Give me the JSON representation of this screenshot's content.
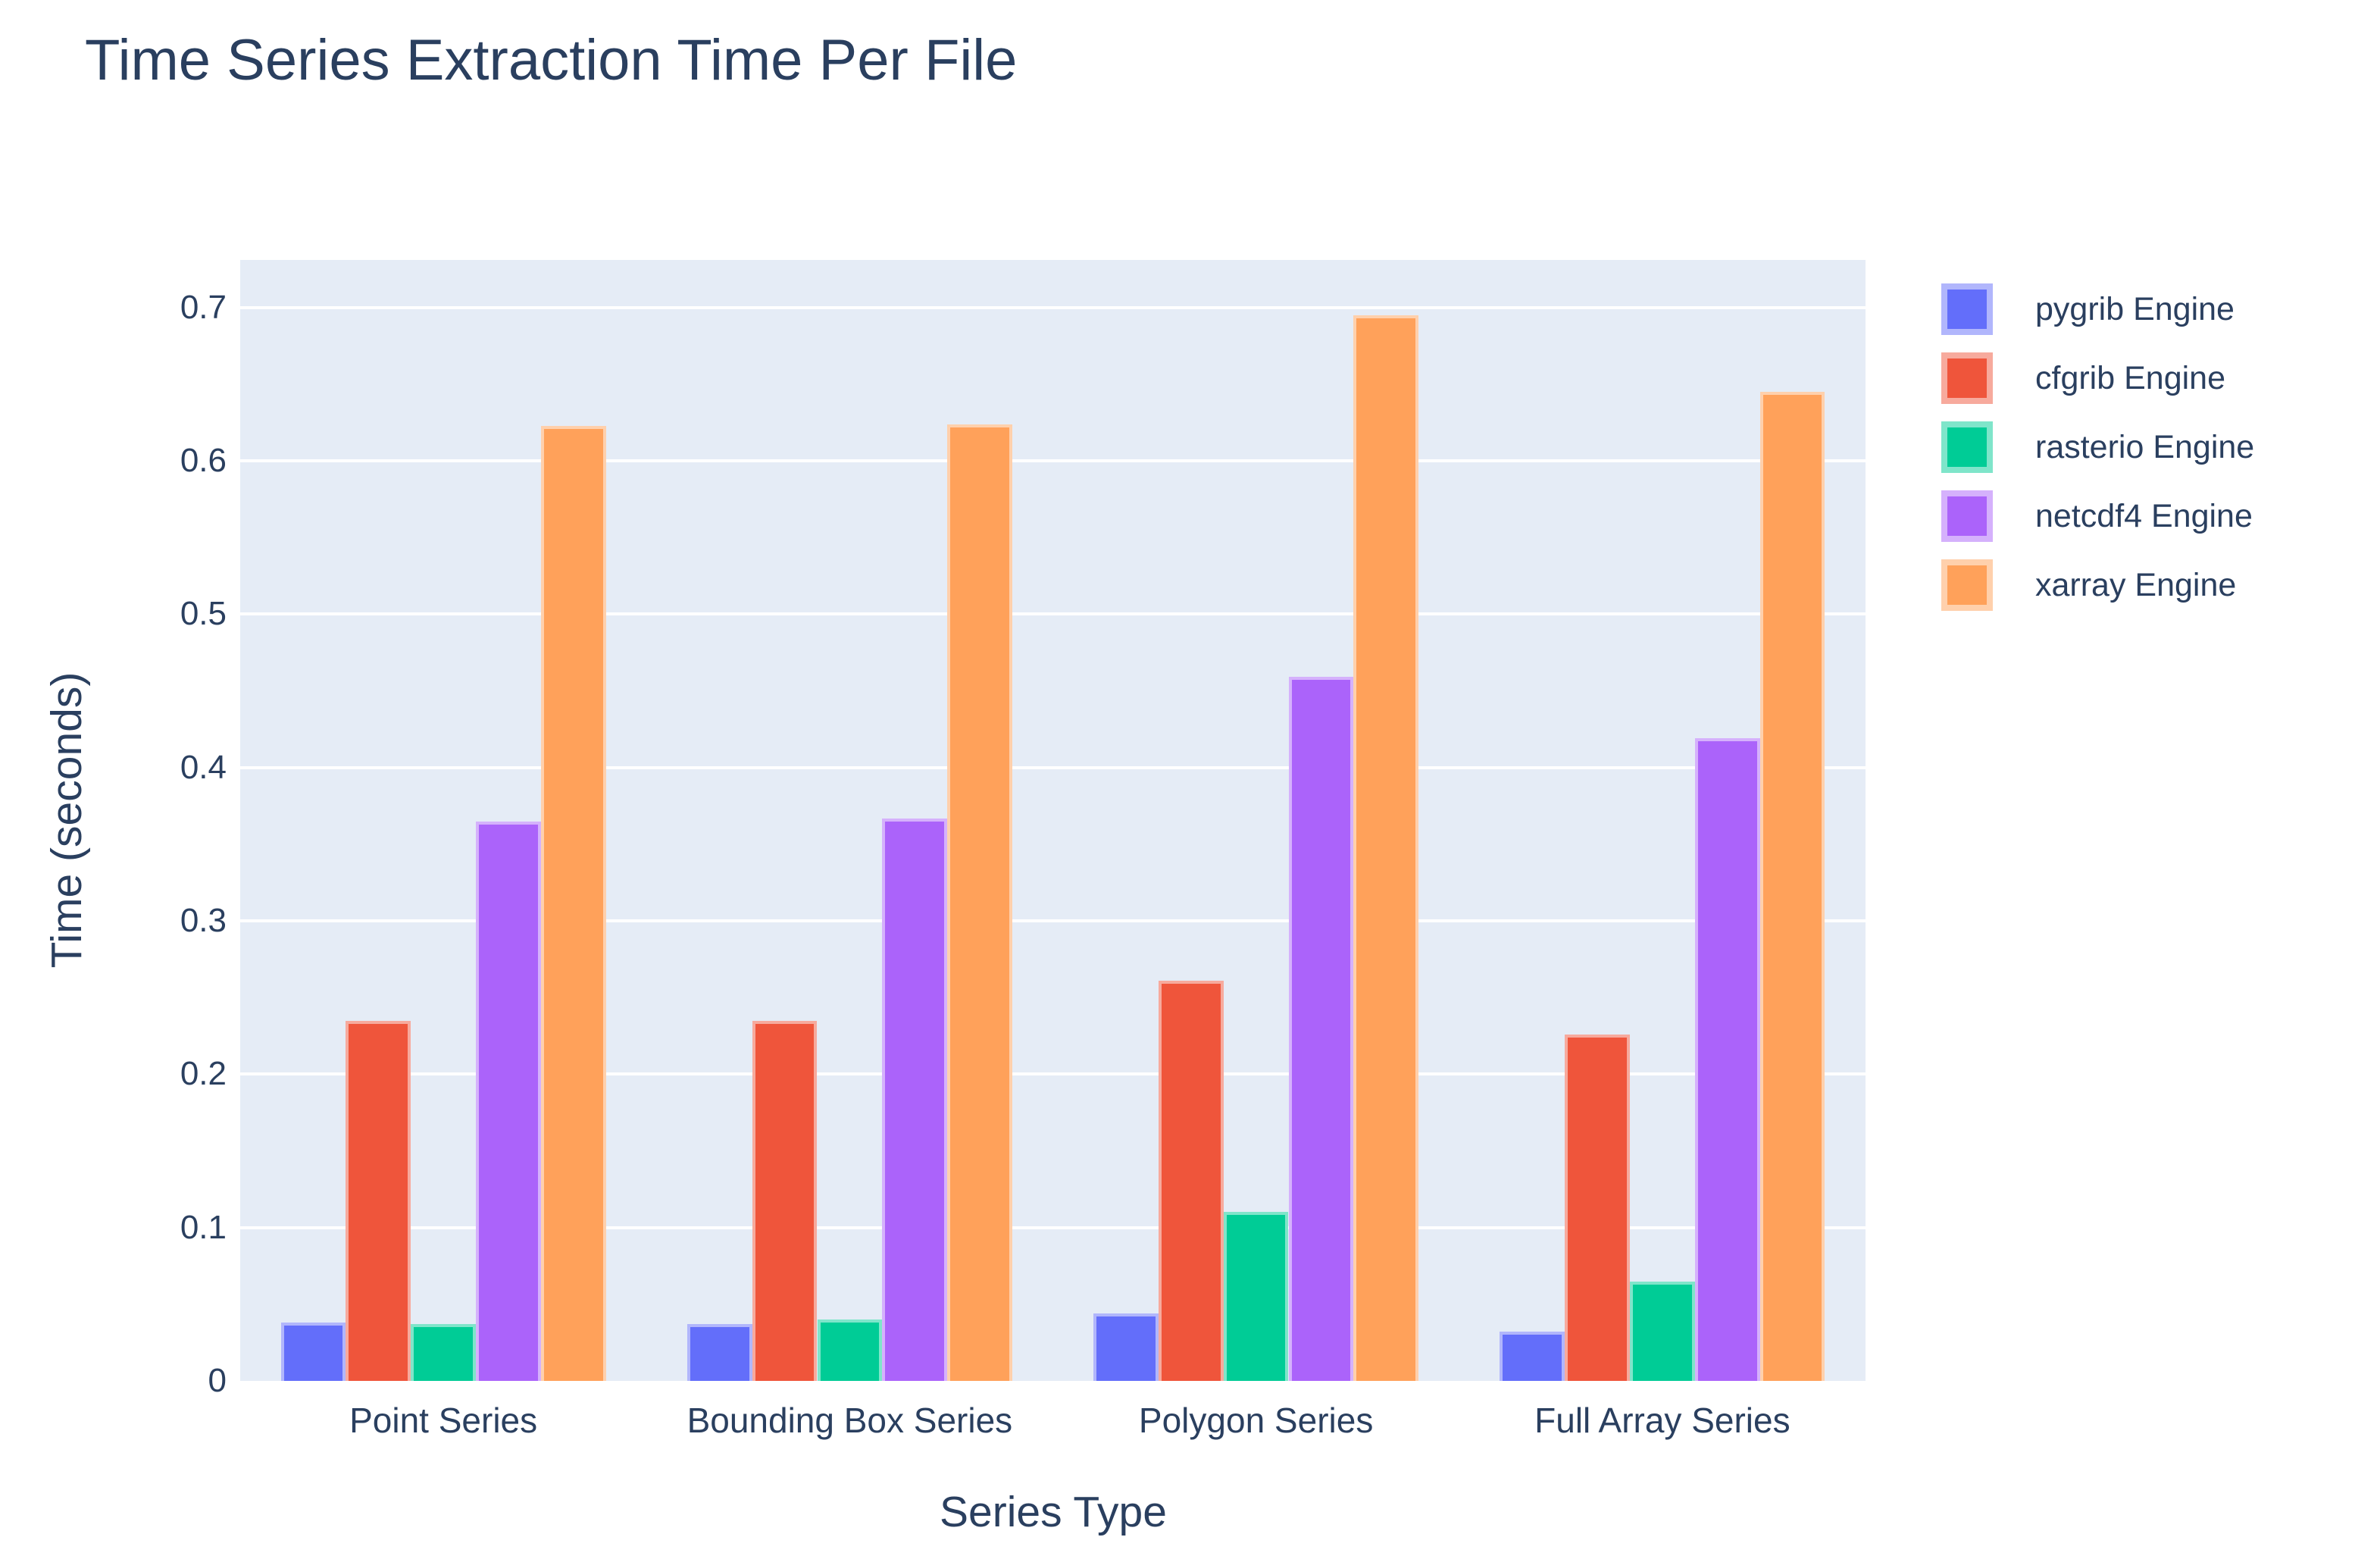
{
  "chart_data": {
    "type": "bar",
    "title": "Time Series Extraction Time Per File",
    "xlabel": "Series Type",
    "ylabel": "Time (seconds)",
    "categories": [
      "Point Series",
      "Bounding Box Series",
      "Polygon Series",
      "Full Array Series"
    ],
    "series": [
      {
        "name": "pygrib Engine",
        "color": "#636EFA",
        "border_color": "#b1b6fc",
        "values": [
          0.038,
          0.037,
          0.044,
          0.032
        ]
      },
      {
        "name": "cfgrib Engine",
        "color": "#EF553B",
        "border_color": "#f7aa9d",
        "values": [
          0.235,
          0.235,
          0.261,
          0.226
        ]
      },
      {
        "name": "rasterio Engine",
        "color": "#00CC96",
        "border_color": "#7fe5ca",
        "values": [
          0.037,
          0.04,
          0.11,
          0.065
        ]
      },
      {
        "name": "netcdf4 Engine",
        "color": "#AB63FA",
        "border_color": "#d5b1fc",
        "values": [
          0.365,
          0.367,
          0.459,
          0.419
        ]
      },
      {
        "name": "xarray Engine",
        "color": "#FFA15A",
        "border_color": "#ffd0ac",
        "values": [
          0.623,
          0.624,
          0.695,
          0.645
        ]
      }
    ],
    "ylim": [
      0,
      0.731
    ],
    "yticks": [
      "0",
      "0.1",
      "0.2",
      "0.3",
      "0.4",
      "0.5",
      "0.6",
      "0.7"
    ],
    "grid": true,
    "legend_position": "right",
    "colors": {
      "text": "#2a3f5f",
      "plot_bg": "#E5ECF6",
      "grid": "#ffffff",
      "page_bg": "#ffffff"
    }
  }
}
